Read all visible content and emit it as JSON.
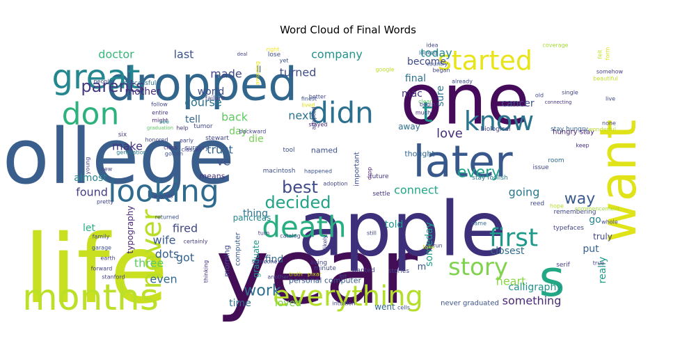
{
  "chart_data": {
    "type": "wordcloud",
    "title": "Word Cloud of Final Words",
    "colormap": "viridis",
    "background": "#ffffff",
    "words": [
      {
        "text": "college",
        "rank": 1
      },
      {
        "text": "life",
        "rank": 2
      },
      {
        "text": "year",
        "rank": 3
      },
      {
        "text": "apple",
        "rank": 4
      },
      {
        "text": "one",
        "rank": 5
      },
      {
        "text": "dropped",
        "rank": 6
      },
      {
        "text": "want",
        "rank": 7
      },
      {
        "text": "s",
        "rank": 8
      },
      {
        "text": "months",
        "rank": 9
      },
      {
        "text": "later",
        "rank": 10
      },
      {
        "text": "everything",
        "rank": 11
      },
      {
        "text": "looking",
        "rank": 12
      },
      {
        "text": "death",
        "rank": 13
      },
      {
        "text": "know",
        "rank": 14
      },
      {
        "text": "didn",
        "rank": 15
      },
      {
        "text": "great",
        "rank": 16
      },
      {
        "text": "don",
        "rank": 17
      },
      {
        "text": "never",
        "rank": 18
      },
      {
        "text": "first",
        "rank": 19
      },
      {
        "text": "started",
        "rank": 20
      },
      {
        "text": "story",
        "rank": 21
      },
      {
        "text": "t",
        "rank": 22
      },
      {
        "text": "parents",
        "rank": 23
      },
      {
        "text": "decided",
        "rank": 24
      },
      {
        "text": "best",
        "rank": 25
      },
      {
        "text": "work",
        "rank": 26
      },
      {
        "text": "every",
        "rank": 27
      },
      {
        "text": "way",
        "rank": 28
      },
      {
        "text": "love",
        "rank": 29
      },
      {
        "text": "company",
        "rank": 30
      },
      {
        "text": "turned",
        "rank": 31
      },
      {
        "text": "next",
        "rank": 32
      },
      {
        "text": "made",
        "rank": 33
      },
      {
        "text": "last",
        "rank": 34
      },
      {
        "text": "doctor",
        "rank": 35
      },
      {
        "text": "today",
        "rank": 36
      },
      {
        "text": "course",
        "rank": 37
      },
      {
        "text": "back",
        "rank": 38
      },
      {
        "text": "trust",
        "rank": 39
      },
      {
        "text": "ve",
        "rank": 40
      },
      {
        "text": "make",
        "rank": 41
      },
      {
        "text": "going",
        "rank": 42
      },
      {
        "text": "heart",
        "rank": 43
      },
      {
        "text": "something",
        "rank": 44
      },
      {
        "text": "connect",
        "rank": 45
      },
      {
        "text": "found",
        "rank": 46
      },
      {
        "text": "fired",
        "rank": 47
      },
      {
        "text": "wife",
        "rank": 48
      },
      {
        "text": "dots",
        "rank": 49
      },
      {
        "text": "got",
        "rank": 50
      },
      {
        "text": "even",
        "rank": 51
      },
      {
        "text": "three",
        "rank": 52
      },
      {
        "text": "mother",
        "rank": 53
      },
      {
        "text": "tell",
        "rank": 54
      },
      {
        "text": "world",
        "rank": 55
      },
      {
        "text": "day",
        "rank": 56
      },
      {
        "text": "die",
        "rank": 57
      },
      {
        "text": "thing",
        "rank": 58
      },
      {
        "text": "find",
        "rank": 59
      },
      {
        "text": "told",
        "rank": 60
      },
      {
        "text": "closest",
        "rank": 61
      },
      {
        "text": "put",
        "rank": 62
      },
      {
        "text": "really",
        "rank": 63
      },
      {
        "text": "calligraphy",
        "rank": 64
      },
      {
        "text": "someday",
        "rank": 65
      },
      {
        "text": "final",
        "rank": 66
      },
      {
        "text": "mac",
        "rank": 67
      },
      {
        "text": "become",
        "rank": 68
      },
      {
        "text": "sure",
        "rank": 69
      },
      {
        "text": "cancer",
        "rank": 70
      },
      {
        "text": "almost",
        "rank": 71
      },
      {
        "text": "let",
        "rank": 72
      },
      {
        "text": "typography",
        "rank": 73
      },
      {
        "text": "loved",
        "rank": 74
      },
      {
        "text": "time",
        "rank": 75
      },
      {
        "text": "went",
        "rank": 76
      },
      {
        "text": "go",
        "rank": 77
      },
      {
        "text": "truly",
        "rank": 78
      },
      {
        "text": "graduate",
        "rank": 79
      },
      {
        "text": "named",
        "rank": 80
      },
      {
        "text": "thought",
        "rank": 81
      },
      {
        "text": "away",
        "rank": 82
      },
      {
        "text": "m",
        "rank": 83
      },
      {
        "text": "pancreas",
        "rank": 84
      },
      {
        "text": "important",
        "rank": 85
      },
      {
        "text": "computer",
        "rank": 86
      },
      {
        "text": "ll",
        "rank": 87
      },
      {
        "text": "stay hungry",
        "rank": 88
      },
      {
        "text": "hungry stay",
        "rank": 89
      },
      {
        "text": "stay foolish",
        "rank": 90
      },
      {
        "text": "never graduated",
        "rank": 91
      },
      {
        "text": "personal computer",
        "rank": 92
      },
      {
        "text": "means",
        "rank": 93
      },
      {
        "text": "morning",
        "rank": 94
      },
      {
        "text": "surgery",
        "rank": 95
      },
      {
        "text": "stewart",
        "rank": 96
      },
      {
        "text": "macintosh",
        "rank": 97
      },
      {
        "text": "right",
        "rank": 98
      },
      {
        "text": "lose",
        "rank": 99
      },
      {
        "text": "yet",
        "rank": 100
      },
      {
        "text": "amazing",
        "rank": 101
      },
      {
        "text": "successful",
        "rank": 102
      },
      {
        "text": "failure",
        "rank": 103
      },
      {
        "text": "follow",
        "rank": 104
      },
      {
        "text": "entire",
        "rank": 105
      },
      {
        "text": "might",
        "rank": 106
      },
      {
        "text": "tumor",
        "rank": 107
      },
      {
        "text": "finest",
        "rank": 108
      },
      {
        "text": "lived",
        "rank": 109
      },
      {
        "text": "better",
        "rank": 110
      },
      {
        "text": "adopted",
        "rank": 111
      },
      {
        "text": "backward",
        "rank": 112
      },
      {
        "text": "stayed",
        "rank": 113
      },
      {
        "text": "google",
        "rank": 114
      },
      {
        "text": "idea",
        "rank": 115
      },
      {
        "text": "looked",
        "rank": 116
      },
      {
        "text": "country",
        "rank": 117
      },
      {
        "text": "began",
        "rank": 118
      },
      {
        "text": "already",
        "rank": 119
      },
      {
        "text": "clear",
        "rank": 120
      },
      {
        "text": "begin",
        "rank": 121
      },
      {
        "text": "much",
        "rank": 122
      },
      {
        "text": "biological",
        "rank": 123
      },
      {
        "text": "people",
        "rank": 124
      },
      {
        "text": "see",
        "rank": 125
      },
      {
        "text": "six",
        "rank": 126
      },
      {
        "text": "generation",
        "rank": 127
      },
      {
        "text": "class",
        "rank": 128
      },
      {
        "text": "classes",
        "rank": 129
      },
      {
        "text": "help",
        "rank": 130
      },
      {
        "text": "early",
        "rank": 131
      },
      {
        "text": "tool",
        "rank": 132
      },
      {
        "text": "future",
        "rank": 133
      },
      {
        "text": "drop",
        "rank": 134
      },
      {
        "text": "happened",
        "rank": 135
      },
      {
        "text": "settle",
        "rank": 136
      },
      {
        "text": "issue",
        "rank": 137
      },
      {
        "text": "room",
        "rank": 138
      },
      {
        "text": "keep",
        "rank": 139
      },
      {
        "text": "reed",
        "rank": 140
      },
      {
        "text": "hope",
        "rank": 141
      },
      {
        "text": "remembering",
        "rank": 142
      },
      {
        "text": "commencement",
        "rank": 143
      },
      {
        "text": "adoption",
        "rank": 144
      },
      {
        "text": "turn",
        "rank": 145
      },
      {
        "text": "still",
        "rank": 146
      },
      {
        "text": "came",
        "rank": 147
      },
      {
        "text": "typefaces",
        "rank": 148
      },
      {
        "text": "whole",
        "rank": 149
      },
      {
        "text": "catalog",
        "rank": 150
      },
      {
        "text": "living",
        "rank": 151
      },
      {
        "text": "minute",
        "rank": 152
      },
      {
        "text": "wanted",
        "rank": 153
      },
      {
        "text": "stories",
        "rank": 154
      },
      {
        "text": "take",
        "rank": 155
      },
      {
        "text": "run",
        "rank": 156
      },
      {
        "text": "serif",
        "rank": 157
      },
      {
        "text": "true",
        "rank": 158
      },
      {
        "text": "another",
        "rank": 159
      },
      {
        "text": "truth",
        "rank": 160
      },
      {
        "text": "pixar",
        "rank": 161
      },
      {
        "text": "intuition",
        "rank": 162
      },
      {
        "text": "cells",
        "rank": 163
      },
      {
        "text": "bit",
        "rank": 164
      },
      {
        "text": "likely",
        "rank": 165
      },
      {
        "text": "stanford",
        "rank": 166
      },
      {
        "text": "thinking",
        "rank": 167
      },
      {
        "text": "someone",
        "rank": 168
      },
      {
        "text": "earth",
        "rank": 169
      },
      {
        "text": "garage",
        "rank": 170
      },
      {
        "text": "family",
        "rank": 171
      },
      {
        "text": "forward",
        "rank": 172
      },
      {
        "text": "pretty",
        "rank": 173
      },
      {
        "text": "events",
        "rank": 174
      },
      {
        "text": "returned",
        "rank": 175
      },
      {
        "text": "certainly",
        "rank": 176
      },
      {
        "text": "young",
        "rank": 177
      },
      {
        "text": "new",
        "rank": 178
      },
      {
        "text": "honored",
        "rank": 179
      },
      {
        "text": "gotten",
        "rank": 180
      },
      {
        "text": "coverage",
        "rank": 181
      },
      {
        "text": "felt",
        "rank": 182
      },
      {
        "text": "form",
        "rank": 183
      },
      {
        "text": "somehow",
        "rank": 184
      },
      {
        "text": "beautiful",
        "rank": 185
      },
      {
        "text": "single",
        "rank": 186
      },
      {
        "text": "live",
        "rank": 187
      },
      {
        "text": "none",
        "rank": 188
      },
      {
        "text": "wonderful",
        "rank": 189
      },
      {
        "text": "old",
        "rank": 190
      },
      {
        "text": "connecting",
        "rank": 191
      },
      {
        "text": "deal",
        "rank": 192
      },
      {
        "text": "graduation",
        "rank": 193
      }
    ]
  }
}
